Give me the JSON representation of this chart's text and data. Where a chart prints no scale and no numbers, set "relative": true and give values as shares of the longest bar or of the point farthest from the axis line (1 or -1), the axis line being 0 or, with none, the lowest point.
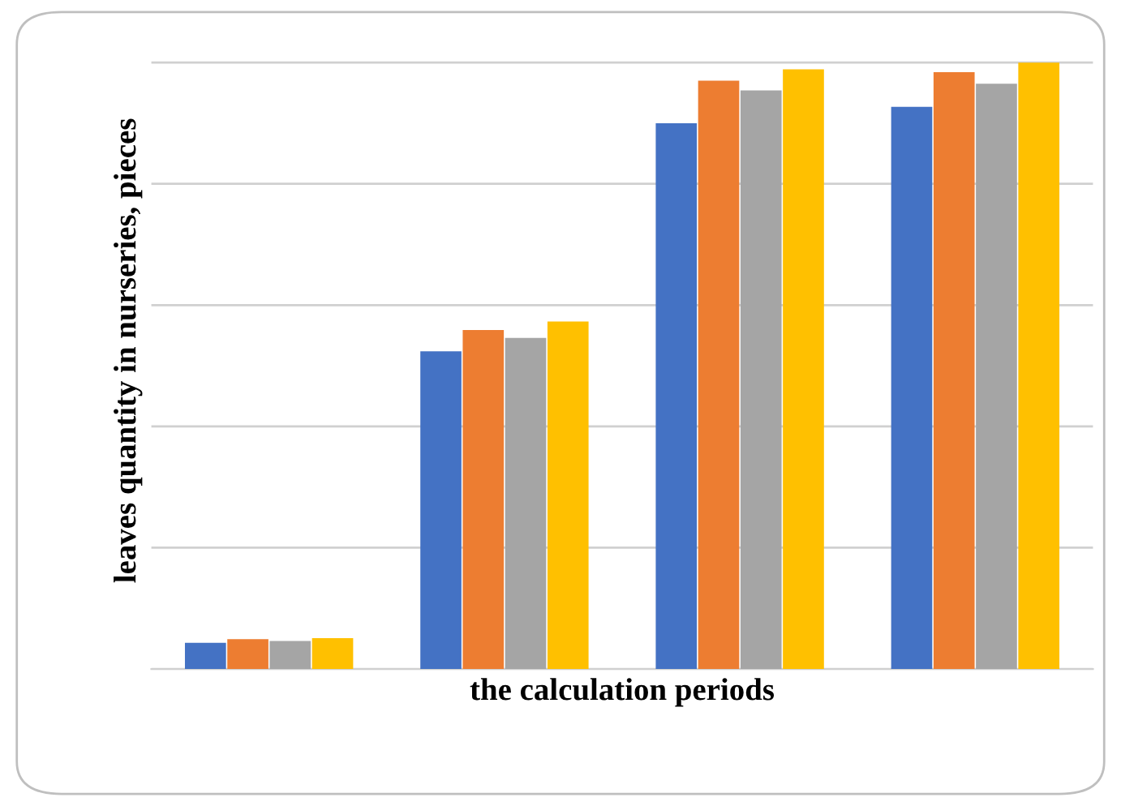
{
  "chart_data": {
    "type": "bar",
    "relative": true,
    "xlabel": "the calculation periods",
    "ylabel": "leaves quantity in nurseries, pieces",
    "categories": [
      null,
      null,
      null,
      null
    ],
    "series": [
      {
        "color": "#4472c4",
        "values": [
          0.043,
          0.524,
          0.9,
          0.927
        ]
      },
      {
        "color": "#ed7d31",
        "values": [
          0.049,
          0.559,
          0.97,
          0.984
        ]
      },
      {
        "color": "#a5a5a5",
        "values": [
          0.046,
          0.546,
          0.954,
          0.965
        ]
      },
      {
        "color": "#ffc000",
        "values": [
          0.051,
          0.573,
          0.989,
          1
        ]
      }
    ],
    "grid": "y",
    "tick_labels": false,
    "legend": false
  }
}
